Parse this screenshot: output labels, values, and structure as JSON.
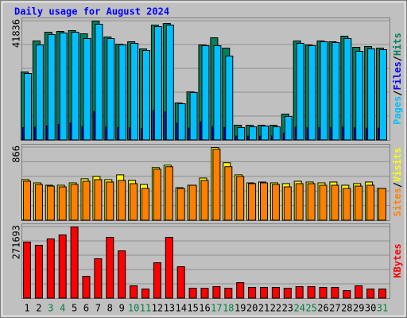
{
  "chart_data": [
    {
      "type": "bar",
      "title": "Daily usage for August 2024",
      "legend_separator": "/",
      "ylim": [
        0,
        41836
      ],
      "yticks": [
        41836
      ],
      "series": [
        {
          "name": "Hits",
          "color": "#00805c",
          "values": [
            23987,
            34863,
            37931,
            38210,
            38489,
            37373,
            41836,
            36258,
            33748,
            34584,
            32074,
            40441,
            41000,
            13108,
            17013,
            33468,
            35979,
            32353,
            5299,
            5299,
            5299,
            5299,
            9204,
            34863,
            33468,
            34863,
            34584,
            36537,
            32631,
            32910,
            32353
          ]
        },
        {
          "name": "Files",
          "color": "#0000ff",
          "values": [
            4500,
            4600,
            5000,
            5600,
            6000,
            4800,
            10000,
            4700,
            4500,
            4400,
            4200,
            10500,
            10000,
            6000,
            4300,
            6500,
            4800,
            4500,
            1500,
            1500,
            1500,
            1500,
            2500,
            4600,
            4400,
            4500,
            4500,
            4700,
            4400,
            4300,
            4300
          ]
        },
        {
          "name": "Pages",
          "color": "#00c0ff",
          "values": [
            23428,
            33468,
            37094,
            37652,
            37931,
            35700,
            40720,
            35700,
            33468,
            34026,
            31516,
            39883,
            40441,
            12830,
            16734,
            33189,
            33189,
            29563,
            4462,
            4741,
            5020,
            4741,
            8367,
            34026,
            33189,
            34584,
            34305,
            35700,
            31237,
            32074,
            31795
          ]
        }
      ]
    },
    {
      "type": "bar",
      "legend_separator": "/",
      "ylim": [
        0,
        866
      ],
      "yticks": [
        866
      ],
      "series": [
        {
          "name": "Visits",
          "color": "#ffff00",
          "values": [
            485,
            447,
            419,
            419,
            447,
            495,
            523,
            485,
            542,
            476,
            428,
            628,
            657,
            390,
            419,
            504,
            866,
            685,
            542,
            447,
            457,
            447,
            438,
            466,
            457,
            447,
            457,
            419,
            438,
            457,
            381
          ]
        },
        {
          "name": "Sites",
          "color": "#ff8000",
          "values": [
            466,
            428,
            409,
            400,
            428,
            466,
            485,
            457,
            476,
            438,
            381,
            609,
            638,
            381,
            419,
            476,
            847,
            638,
            523,
            438,
            447,
            428,
            400,
            438,
            438,
            419,
            419,
            381,
            409,
            419,
            381
          ]
        }
      ]
    },
    {
      "type": "bar",
      "ylim": [
        0,
        271693
      ],
      "yticks": [
        271693
      ],
      "categories": [
        "1",
        "2",
        "3",
        "4",
        "5",
        "6",
        "7",
        "8",
        "9",
        "10",
        "11",
        "12",
        "13",
        "14",
        "15",
        "16",
        "17",
        "18",
        "19",
        "20",
        "21",
        "22",
        "23",
        "24",
        "25",
        "26",
        "27",
        "28",
        "29",
        "30",
        "31"
      ],
      "category_colors": [
        "#000000",
        "#000000",
        "#008040",
        "#008040",
        "#000000",
        "#000000",
        "#000000",
        "#000000",
        "#000000",
        "#008040",
        "#008040",
        "#000000",
        "#000000",
        "#000000",
        "#000000",
        "#000000",
        "#008040",
        "#008040",
        "#000000",
        "#000000",
        "#000000",
        "#000000",
        "#000000",
        "#008040",
        "#008040",
        "#000000",
        "#000000",
        "#000000",
        "#000000",
        "#000000",
        "#008040"
      ],
      "series": [
        {
          "name": "KBytes",
          "color": "#ff0000",
          "values": [
            214349,
            202273,
            226425,
            241520,
            271693,
            84532,
            150950,
            232463,
            181140,
            48304,
            36228,
            135855,
            232463,
            120760,
            39247,
            39247,
            45285,
            39247,
            60380,
            42266,
            42266,
            42266,
            39247,
            45285,
            45285,
            42266,
            42266,
            30190,
            48304,
            36228,
            36228
          ]
        }
      ]
    }
  ]
}
